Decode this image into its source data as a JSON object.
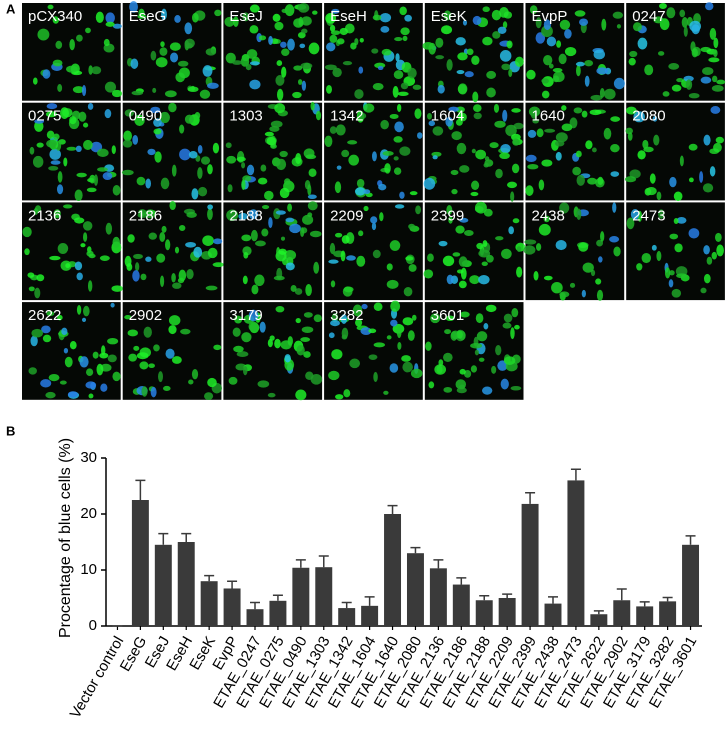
{
  "panel_a": {
    "label": "A",
    "tiles": [
      "pCX340",
      "EseG",
      "EseJ",
      "EseH",
      "EseK",
      "EvpP",
      "0247",
      "0275",
      "0490",
      "1303",
      "1342",
      "1604",
      "1640",
      "2080",
      "2136",
      "2186",
      "2188",
      "2209",
      "2399",
      "2438",
      "2473",
      "2622",
      "2902",
      "3179",
      "3282",
      "3601"
    ]
  },
  "panel_b": {
    "label": "B"
  },
  "chart_data": {
    "type": "bar",
    "y_label": "Procentage of blue cells (%)",
    "categories": [
      "Vector control",
      "EseG",
      "EseJ",
      "EseH",
      "EseK",
      "EvpP",
      "ETAE_0247",
      "ETAE_0275",
      "ETAE_0490",
      "ETAE_1303",
      "ETAE_1342",
      "ETAE_1604",
      "ETAE_1640",
      "ETAE_2080",
      "ETAE_2136",
      "ETAE_2186",
      "ETAE_2188",
      "ETAE_2209",
      "ETAE_2399",
      "ETAE_2438",
      "ETAE_2473",
      "ETAE_2622",
      "ETAE_2902",
      "ETAE_3179",
      "ETAE_3282",
      "ETAE_3601"
    ],
    "values": [
      0,
      22.5,
      14.5,
      15,
      8,
      6.7,
      3,
      4.5,
      10.4,
      10.5,
      3.2,
      3.6,
      20,
      13,
      10.3,
      7.4,
      4.6,
      5,
      21.8,
      4,
      26,
      2.1,
      4.6,
      3.5,
      4.4,
      14.5
    ],
    "errors": [
      0,
      3.5,
      2,
      1.5,
      1,
      1.3,
      1.2,
      1,
      1.4,
      2,
      1,
      1.6,
      1.5,
      1,
      1.5,
      1.2,
      0.8,
      0.7,
      2,
      1.2,
      2,
      0.6,
      2,
      0.8,
      0.7,
      1.6
    ],
    "color": "#3a3a3a",
    "ylim": [
      0,
      30
    ],
    "yticks": [
      0,
      10,
      20,
      30
    ]
  }
}
